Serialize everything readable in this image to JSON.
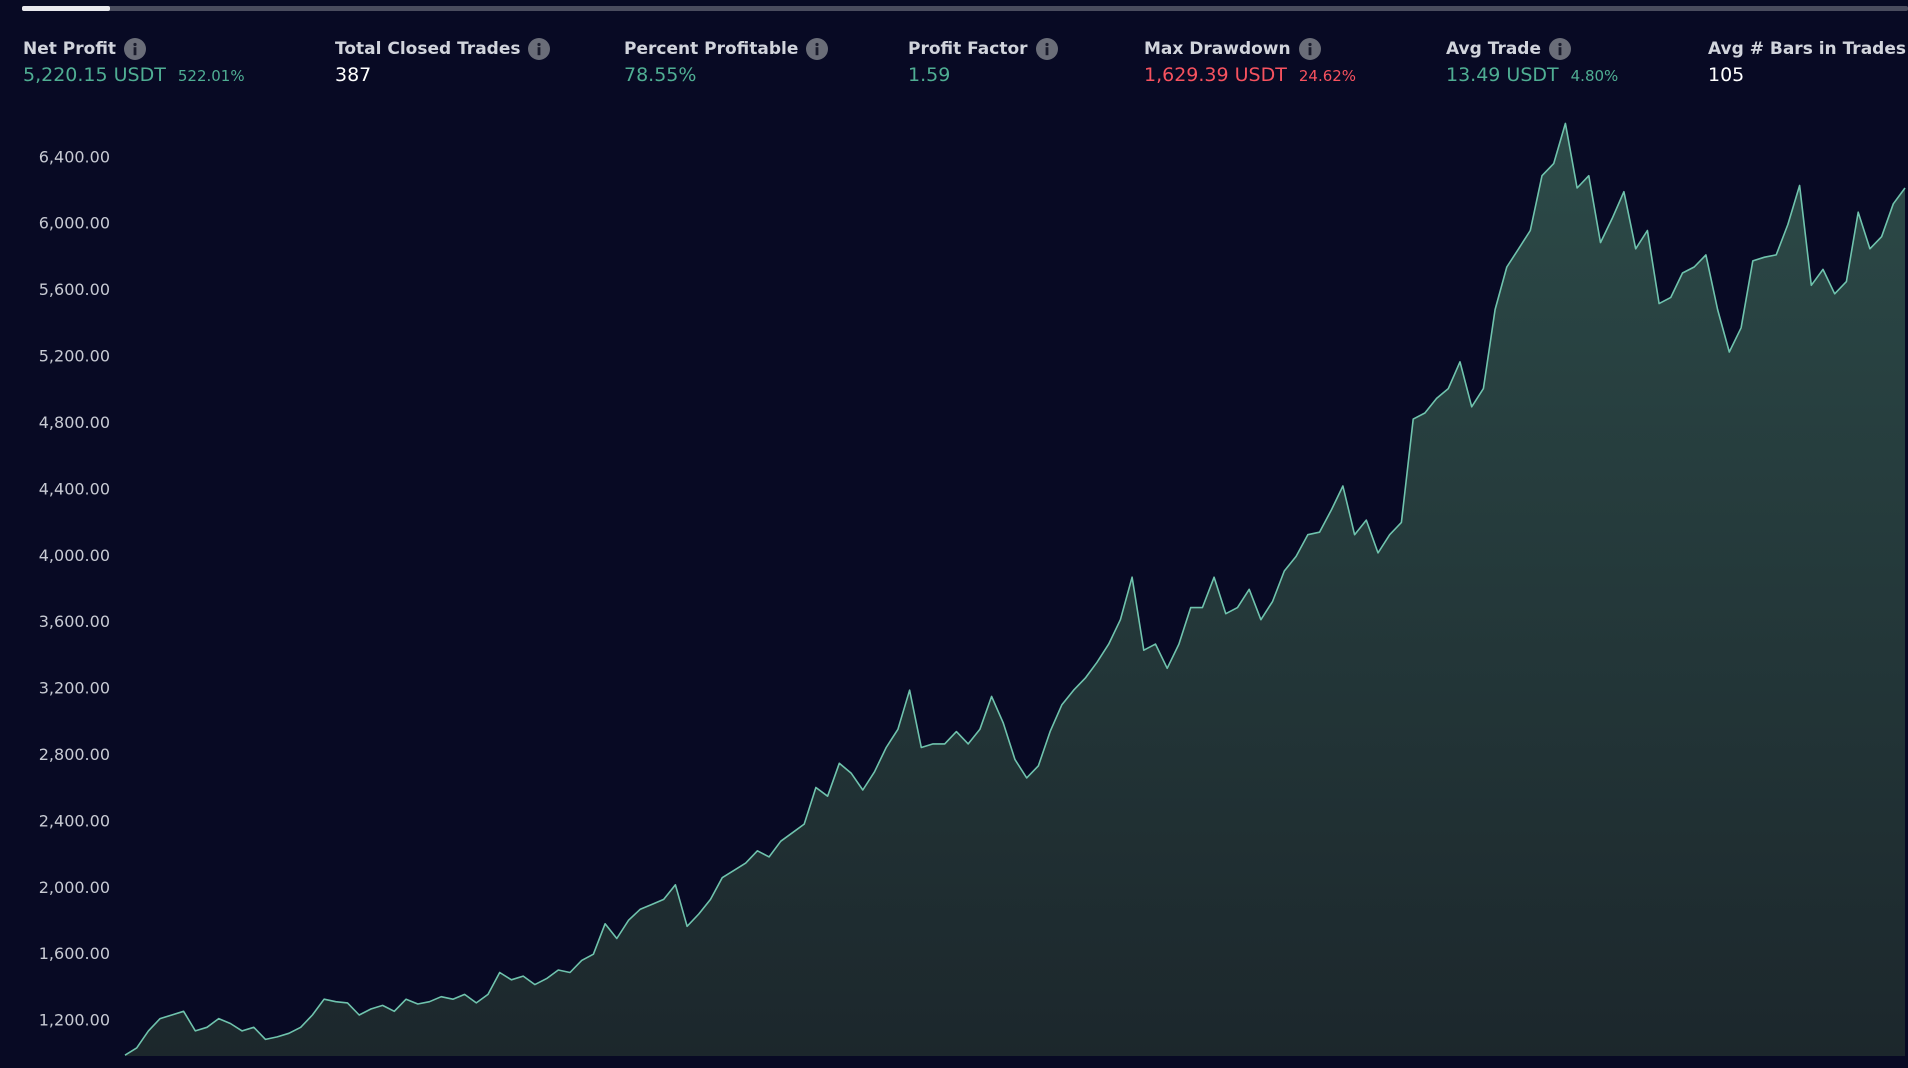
{
  "stats": [
    {
      "label": "Net Profit",
      "value": "5,220.15 USDT",
      "percent": "522.01%",
      "color": "#4fae93"
    },
    {
      "label": "Total Closed Trades",
      "value": "387",
      "color": "#ffffff"
    },
    {
      "label": "Percent Profitable",
      "value": "78.55%",
      "color": "#4fae93"
    },
    {
      "label": "Profit Factor",
      "value": "1.59",
      "color": "#4fae93"
    },
    {
      "label": "Max Drawdown",
      "value": "1,629.39 USDT",
      "percent": "24.62%",
      "color": "#f7525f"
    },
    {
      "label": "Avg Trade",
      "value": "13.49 USDT",
      "percent": "4.80%",
      "color": "#4fae93"
    },
    {
      "label": "Avg # Bars in Trades",
      "value": "105",
      "color": "#ffffff"
    }
  ],
  "chart_data": {
    "type": "area",
    "color": "#6fc3ad",
    "ylim": [
      990,
      6730
    ],
    "yticks": [
      {
        "value": 1200,
        "label": "1,200.00"
      },
      {
        "value": 1600,
        "label": "1,600.00"
      },
      {
        "value": 2000,
        "label": "2,000.00"
      },
      {
        "value": 2400,
        "label": "2,400.00"
      },
      {
        "value": 2800,
        "label": "2,800.00"
      },
      {
        "value": 3200,
        "label": "3,200.00"
      },
      {
        "value": 3600,
        "label": "3,600.00"
      },
      {
        "value": 4000,
        "label": "4,000.00"
      },
      {
        "value": 4400,
        "label": "4,400.00"
      },
      {
        "value": 4800,
        "label": "4,800.00"
      },
      {
        "value": 5200,
        "label": "5,200.00"
      },
      {
        "value": 5600,
        "label": "5,600.00"
      },
      {
        "value": 6000,
        "label": "6,000.00"
      },
      {
        "value": 6400,
        "label": "6,400.00"
      }
    ],
    "values": [
      995,
      1039,
      1141,
      1215,
      1237,
      1259,
      1141,
      1163,
      1215,
      1186,
      1141,
      1163,
      1090,
      1105,
      1127,
      1163,
      1237,
      1332,
      1317,
      1310,
      1237,
      1273,
      1295,
      1259,
      1332,
      1303,
      1317,
      1347,
      1332,
      1361,
      1310,
      1361,
      1493,
      1449,
      1471,
      1420,
      1456,
      1508,
      1493,
      1566,
      1603,
      1786,
      1698,
      1808,
      1874,
      1903,
      1933,
      2021,
      1771,
      1845,
      1933,
      2064,
      2108,
      2152,
      2226,
      2189,
      2284,
      2335,
      2387,
      2607,
      2555,
      2753,
      2694,
      2592,
      2702,
      2848,
      2958,
      3193,
      2848,
      2870,
      2870,
      2944,
      2870,
      2958,
      3156,
      2995,
      2775,
      2665,
      2738,
      2944,
      3105,
      3193,
      3266,
      3361,
      3471,
      3618,
      3874,
      3434,
      3471,
      3325,
      3471,
      3691,
      3691,
      3874,
      3654,
      3691,
      3801,
      3618,
      3728,
      3911,
      3999,
      4130,
      4145,
      4277,
      4423,
      4130,
      4218,
      4020,
      4130,
      4204,
      4826,
      4863,
      4951,
      5010,
      5171,
      4900,
      5010,
      5486,
      5742,
      5852,
      5962,
      6292,
      6365,
      6607,
      6218,
      6292,
      5889,
      6035,
      6196,
      5852,
      5962,
      5522,
      5559,
      5706,
      5742,
      5815,
      5486,
      5230,
      5376,
      5779,
      5801,
      5815,
      5999,
      6233,
      5632,
      5728,
      5581,
      5654,
      6072,
      5852,
      5925,
      6123,
      6218
    ]
  }
}
